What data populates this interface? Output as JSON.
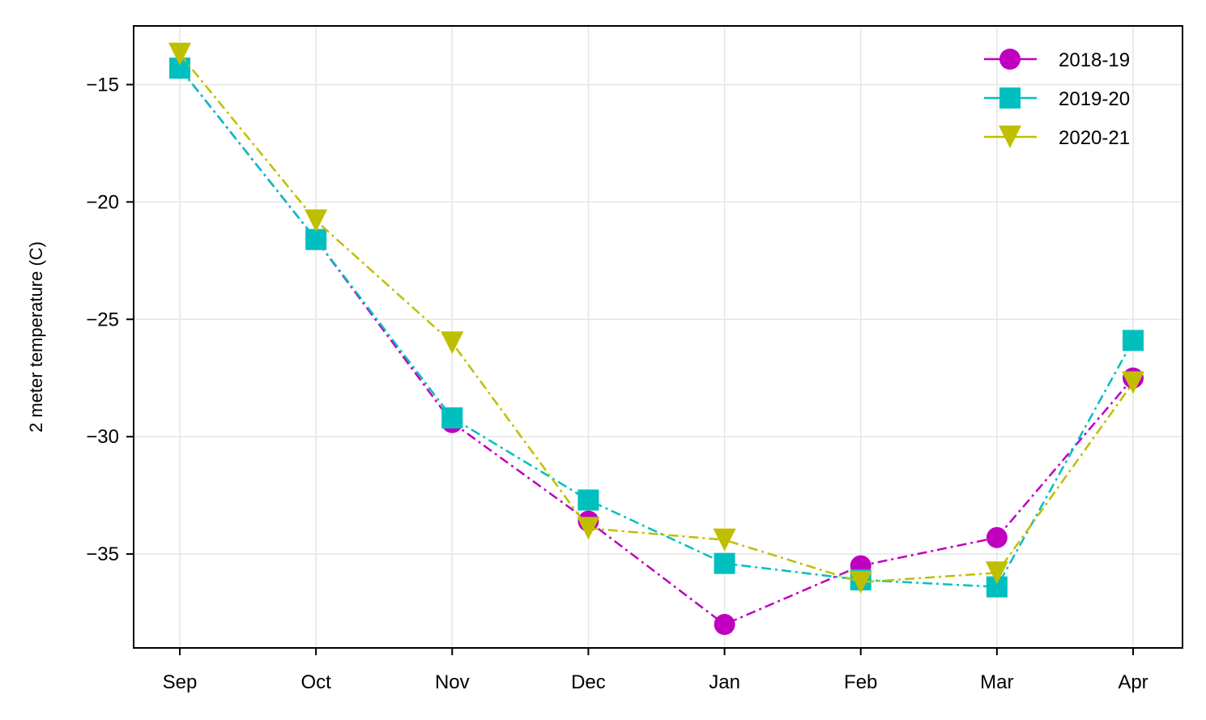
{
  "chart_data": {
    "type": "line",
    "title": "",
    "xlabel": "",
    "ylabel": "2 meter temperature (C)",
    "categories": [
      "Sep",
      "Oct",
      "Nov",
      "Dec",
      "Jan",
      "Feb",
      "Mar",
      "Apr"
    ],
    "ylim": [
      -39.0,
      -12.5
    ],
    "yticks": [
      -35,
      -30,
      -25,
      -20,
      -15
    ],
    "ytick_labels": [
      "−35",
      "−30",
      "−25",
      "−20",
      "−15"
    ],
    "grid": true,
    "legend_position": "top-right",
    "series": [
      {
        "name": "2018-19",
        "color": "#bf00bf",
        "marker": "circle",
        "values": [
          -14.3,
          -21.6,
          -29.4,
          -33.6,
          -38.0,
          -35.5,
          -34.3,
          -27.5
        ]
      },
      {
        "name": "2019-20",
        "color": "#00bfbf",
        "marker": "square",
        "values": [
          -14.3,
          -21.6,
          -29.2,
          -32.7,
          -35.4,
          -36.1,
          -36.4,
          -25.9
        ]
      },
      {
        "name": "2020-21",
        "color": "#bfbf00",
        "marker": "triangle-down",
        "values": [
          -13.7,
          -20.8,
          -26.0,
          -33.9,
          -34.4,
          -36.2,
          -35.8,
          -27.7
        ]
      }
    ]
  }
}
